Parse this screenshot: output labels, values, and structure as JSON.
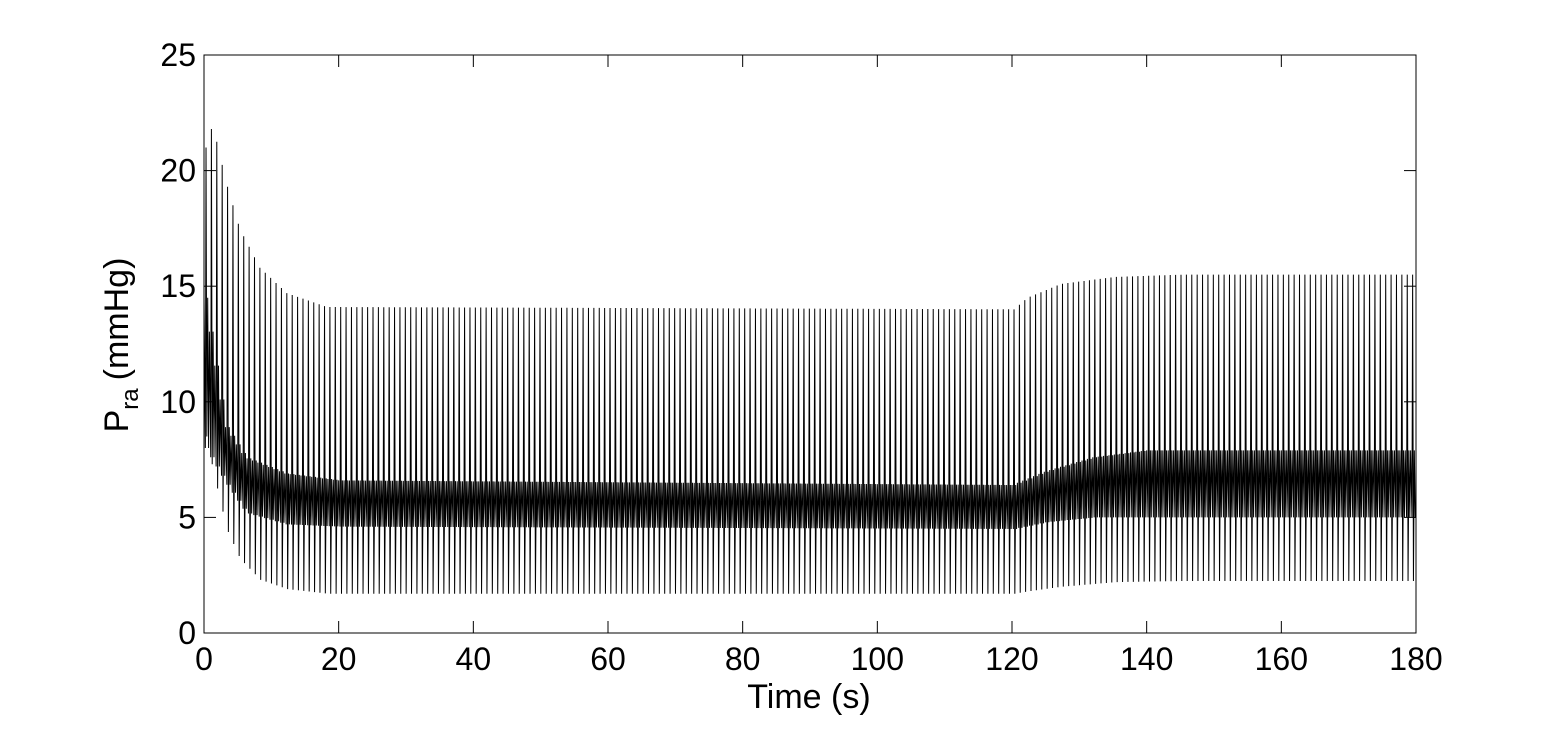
{
  "chart_data": {
    "type": "line",
    "xlabel": "Time (s)",
    "ylabel": {
      "main": "P",
      "subscript": "ra",
      "unit": "(mmHg)"
    },
    "xlim": [
      0,
      180
    ],
    "ylim": [
      0,
      25
    ],
    "xticks": [
      "0",
      "20",
      "40",
      "60",
      "80",
      "100",
      "120",
      "140",
      "160",
      "180"
    ],
    "yticks": [
      "0",
      "5",
      "10",
      "15",
      "20",
      "25"
    ],
    "grid": false,
    "line_color": "#000000",
    "series": [
      {
        "description_points": [
          {
            "t": 0,
            "max": 21.0,
            "min": 8.5
          },
          {
            "t": 1,
            "max": 22.0,
            "min": 7.0
          },
          {
            "t": 3,
            "max": 19.5,
            "min": 4.5
          },
          {
            "t": 5,
            "max": 17.5,
            "min": 3.2
          },
          {
            "t": 8,
            "max": 15.8,
            "min": 2.3
          },
          {
            "t": 12,
            "max": 14.7,
            "min": 1.9
          },
          {
            "t": 18,
            "max": 14.1,
            "min": 1.7
          },
          {
            "t": 120,
            "max": 14.0,
            "min": 1.7
          },
          {
            "t": 122,
            "max": 14.5,
            "min": 1.8
          },
          {
            "t": 127,
            "max": 15.1,
            "min": 2.0
          },
          {
            "t": 135,
            "max": 15.4,
            "min": 2.2
          },
          {
            "t": 145,
            "max": 15.5,
            "min": 2.25
          },
          {
            "t": 180,
            "max": 15.5,
            "min": 2.25
          }
        ],
        "band_points": [
          {
            "t": 0,
            "upper": 14.5,
            "lower": 8.0
          },
          {
            "t": 3,
            "upper": 9.0,
            "lower": 6.5
          },
          {
            "t": 6,
            "upper": 7.6,
            "lower": 5.2
          },
          {
            "t": 12,
            "upper": 6.9,
            "lower": 4.7
          },
          {
            "t": 20,
            "upper": 6.6,
            "lower": 4.6
          },
          {
            "t": 120,
            "upper": 6.4,
            "lower": 4.5
          },
          {
            "t": 125,
            "upper": 7.0,
            "lower": 4.8
          },
          {
            "t": 132,
            "upper": 7.6,
            "lower": 5.0
          },
          {
            "t": 140,
            "upper": 7.9,
            "lower": 5.0
          },
          {
            "t": 180,
            "upper": 7.9,
            "lower": 5.0
          }
        ]
      }
    ]
  }
}
